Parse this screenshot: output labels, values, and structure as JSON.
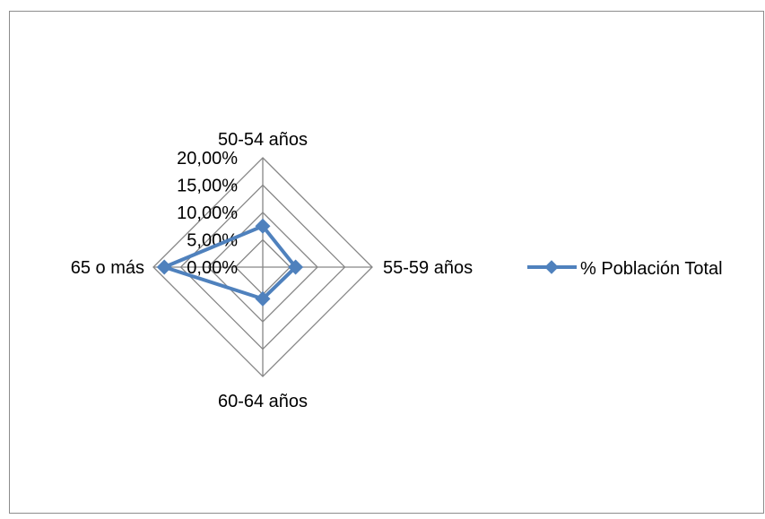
{
  "chart_data": {
    "type": "radar",
    "categories": [
      "50-54 años",
      "55-59 años",
      "60-64 años",
      "65 o más"
    ],
    "series": [
      {
        "name": "% Población Total",
        "values": [
          7.5,
          6.0,
          5.8,
          18.0
        ],
        "color": "#4f81bd"
      }
    ],
    "rlim": [
      0,
      20
    ],
    "ticks": [
      0,
      5,
      10,
      15,
      20
    ],
    "tick_labels": [
      "0,00%",
      "5,00%",
      "10,00%",
      "15,00%",
      "20,00%"
    ],
    "grid": true,
    "legend": {
      "position": "right",
      "entries": [
        "% Población Total"
      ]
    },
    "title": "",
    "grid_color": "#868686"
  }
}
